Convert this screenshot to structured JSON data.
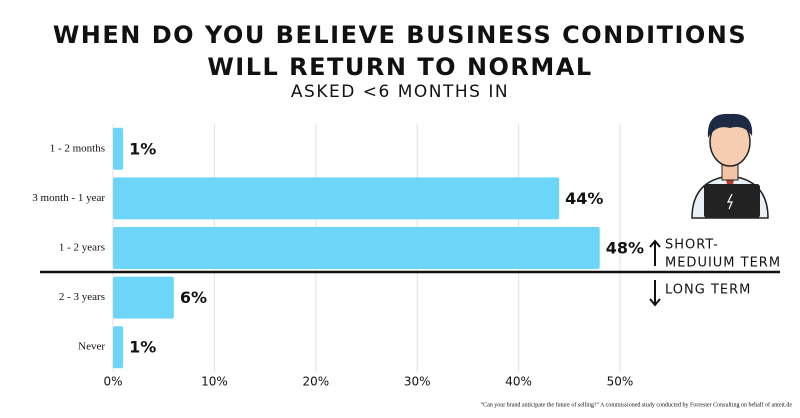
{
  "chart_data": {
    "type": "bar",
    "orientation": "horizontal",
    "title": [
      "WHEN DO YOU BELIEVE BUSINESS CONDITIONS",
      "WILL RETURN TO NORMAL"
    ],
    "subtitle": "ASKED <6 MONTHS IN",
    "categories": [
      "1 - 2 months",
      "3 month - 1 year",
      "1 - 2 years",
      "2 - 3 years",
      "Never"
    ],
    "values": [
      1,
      44,
      48,
      6,
      1
    ],
    "value_labels": [
      "1%",
      "44%",
      "48%",
      "6%",
      "1%"
    ],
    "color": "#6dd6f8",
    "xlim": [
      0,
      50
    ],
    "xticks": [
      {
        "value": 0,
        "label": "0%"
      },
      {
        "value": 10,
        "label": "10%"
      },
      {
        "value": 20,
        "label": "20%"
      },
      {
        "value": 30,
        "label": "30%"
      },
      {
        "value": 40,
        "label": "40%"
      },
      {
        "value": 50,
        "label": "50%"
      }
    ],
    "grid": true,
    "annotations": [
      "SHORT-",
      "MEDUIUM TERM",
      "LONG TERM"
    ],
    "source": "\"Can your brand anticipate the future of selling?\" A commissioned study conducted by Forrester Consulting on behalf of anteit.de"
  }
}
